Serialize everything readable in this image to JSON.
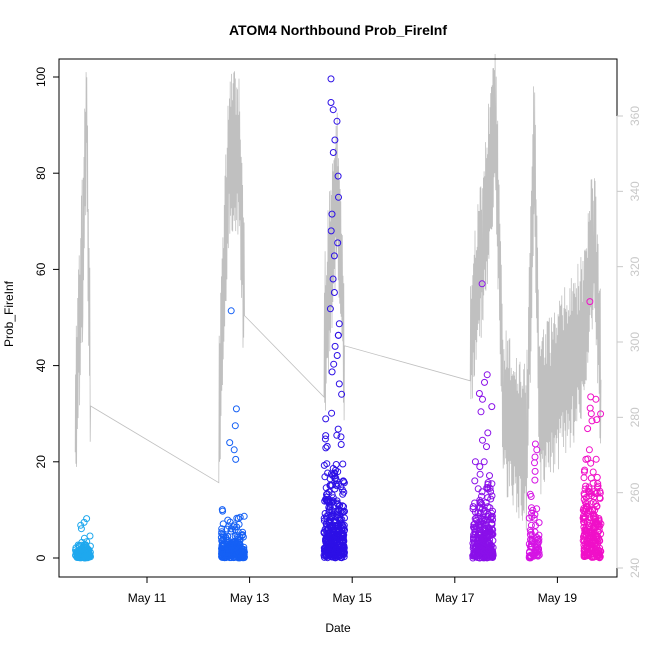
{
  "chart_data": {
    "type": "scatter",
    "title": "ATOM4 Northbound Prob_FireInf",
    "xlabel": "Date",
    "ylabel": "Prob_FireInf",
    "ylim": [
      0,
      100
    ],
    "y2lim": [
      240,
      360
    ],
    "x_ticks": [
      {
        "date": "May 11",
        "day": 11
      },
      {
        "date": "May 13",
        "day": 13
      },
      {
        "date": "May 15",
        "day": 15
      },
      {
        "date": "May 17",
        "day": 17
      },
      {
        "date": "May 19",
        "day": 19
      }
    ],
    "y_ticks": [
      0,
      20,
      40,
      60,
      80,
      100
    ],
    "y2_ticks": [
      240,
      260,
      280,
      300,
      320,
      340,
      360
    ],
    "scatter_clusters": [
      {
        "day_start": 9.6,
        "day_end": 9.9,
        "color": "#1fa8ee",
        "max": 8.2,
        "n": 110,
        "spread": 0.8,
        "outliers": [
          8.2,
          7.4,
          6.8,
          6.1
        ]
      },
      {
        "day_start": 12.45,
        "day_end": 12.9,
        "color": "#1560f5",
        "max": 51.4,
        "n": 260,
        "spread": 1.5,
        "outliers": [
          51.4,
          31,
          27.5,
          24,
          22.5,
          20.5
        ]
      },
      {
        "day_start": 14.45,
        "day_end": 14.85,
        "color": "#2d10e6",
        "max": 99.6,
        "n": 360,
        "spread": 5,
        "outliers": [
          99.6,
          94.7,
          93.2,
          90.8,
          86.9,
          84.3,
          79.4,
          75,
          71.5,
          68,
          65.5,
          62.8,
          58,
          55.2,
          51.8,
          48.7,
          46.3,
          44,
          42.1,
          40.3,
          38.7,
          36.2
        ]
      },
      {
        "day_start": 17.35,
        "day_end": 17.75,
        "color": "#8a10e9",
        "max": 57,
        "n": 300,
        "spread": 3.8,
        "outliers": [
          57,
          38.1,
          36.5,
          34.2,
          33,
          30.4,
          26,
          24.5
        ]
      },
      {
        "day_start": 18.45,
        "day_end": 18.65,
        "color": "#d514e4",
        "max": 23.7,
        "n": 70,
        "spread": 2.5,
        "outliers": [
          23.7,
          22.5,
          21,
          19.8,
          18,
          16.2
        ]
      },
      {
        "day_start": 19.5,
        "day_end": 19.85,
        "color": "#f010c8",
        "max": 53.3,
        "n": 240,
        "spread": 4.5,
        "outliers": [
          53.3,
          33.5,
          30,
          28.5,
          26.9,
          22.5,
          20.6
        ]
      }
    ],
    "secondary_line": {
      "color": "#c0c0c0",
      "note": "gray line on right axis (240-360)",
      "anchors": [
        {
          "day": 9.6,
          "y2": 280
        },
        {
          "day": 9.75,
          "y2": 325
        },
        {
          "day": 9.82,
          "y2": 362
        },
        {
          "day": 9.9,
          "y2": 283
        },
        {
          "day": 12.4,
          "y2": 281
        },
        {
          "day": 12.6,
          "y2": 350
        },
        {
          "day": 12.8,
          "y2": 350
        },
        {
          "day": 12.9,
          "y2": 307
        },
        {
          "day": 14.45,
          "y2": 300
        },
        {
          "day": 14.7,
          "y2": 342
        },
        {
          "day": 14.85,
          "y2": 299
        },
        {
          "day": 17.3,
          "y2": 300
        },
        {
          "day": 17.55,
          "y2": 328
        },
        {
          "day": 17.8,
          "y2": 357
        },
        {
          "day": 17.95,
          "y2": 282
        },
        {
          "day": 18.4,
          "y2": 271
        },
        {
          "day": 18.55,
          "y2": 356
        },
        {
          "day": 18.65,
          "y2": 279
        },
        {
          "day": 19.55,
          "y2": 302
        },
        {
          "day": 19.7,
          "y2": 330
        },
        {
          "day": 19.85,
          "y2": 290
        }
      ]
    }
  }
}
